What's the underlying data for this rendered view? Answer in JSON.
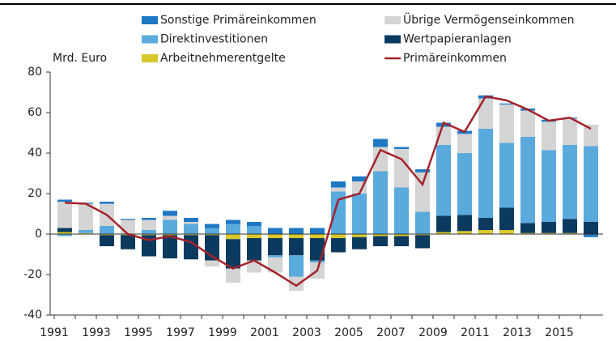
{
  "chart_data": {
    "type": "bar",
    "stacked": true,
    "ylabel": "Mrd. Euro",
    "categories": [
      "1991",
      null,
      "1993",
      null,
      "1995",
      null,
      "1997",
      null,
      "1999",
      null,
      "2001",
      null,
      "2003",
      null,
      "2005",
      null,
      "2007",
      null,
      "2009",
      null,
      "2011",
      null,
      "2013",
      null,
      "2015",
      null
    ],
    "series": [
      {
        "name": "Sonstige Primäreinkommen",
        "color": "#1f78c4",
        "values": [
          1,
          0.5,
          1,
          0.5,
          1,
          2.5,
          2,
          2,
          2,
          2,
          3,
          3,
          3,
          3,
          2.5,
          4,
          1,
          1.5,
          2,
          1.5,
          1.5,
          0.5,
          1,
          1,
          0.5,
          -1.5
        ]
      },
      {
        "name": "Übrige Vermögenseinkommen",
        "color": "#d4d4d4",
        "values": [
          13,
          13,
          11,
          7,
          5,
          2,
          1,
          -3,
          -7,
          -6,
          -7.5,
          -7,
          -8,
          2,
          6,
          12,
          19,
          19.5,
          9,
          9.5,
          15,
          19,
          13,
          14,
          13,
          10.5
        ]
      },
      {
        "name": "Direktinvestitionen",
        "color": "#5aaadd",
        "values": [
          -1,
          1.5,
          4,
          0,
          2,
          7,
          5,
          3,
          5,
          4,
          -1,
          -10.5,
          -1,
          21,
          20,
          31,
          23,
          11,
          35,
          30.5,
          44,
          32,
          42.5,
          35.5,
          36.5,
          37.5
        ]
      },
      {
        "name": "Wertpapieranlagen",
        "color": "#0c3a5e",
        "values": [
          2,
          0,
          -5.5,
          -7,
          -10.5,
          -11.5,
          -12,
          -12.5,
          -14.5,
          -11,
          -8.5,
          -8.5,
          -11,
          -7,
          -6,
          -5,
          -5,
          -6.5,
          8,
          8,
          6,
          11,
          5,
          5.5,
          7,
          6
        ]
      },
      {
        "name": "Arbeitnehmerentgelte",
        "color": "#d8c82c",
        "values": [
          1,
          0.5,
          -0.5,
          -0.5,
          -0.5,
          -0.5,
          -0.5,
          -0.5,
          -2.5,
          -2,
          -2,
          -2,
          -2,
          -2,
          -1.5,
          -1,
          -1,
          -0.5,
          1,
          1.5,
          2,
          2,
          0.5,
          0.5,
          0.5,
          0
        ]
      },
      {
        "name": "Primäreinkommen",
        "type": "line",
        "color": "#a3232b",
        "values": [
          15.5,
          15,
          9.5,
          0,
          -3,
          -1,
          -4,
          -11,
          -17,
          -13,
          -19,
          -25.5,
          -18,
          17,
          20,
          41.5,
          37,
          24.5,
          55,
          50.5,
          68,
          66,
          61.5,
          56,
          57.5,
          52
        ]
      }
    ],
    "ylim": [
      -40,
      80
    ],
    "yticks": [
      -40,
      -20,
      0,
      20,
      40,
      60,
      80
    ]
  }
}
